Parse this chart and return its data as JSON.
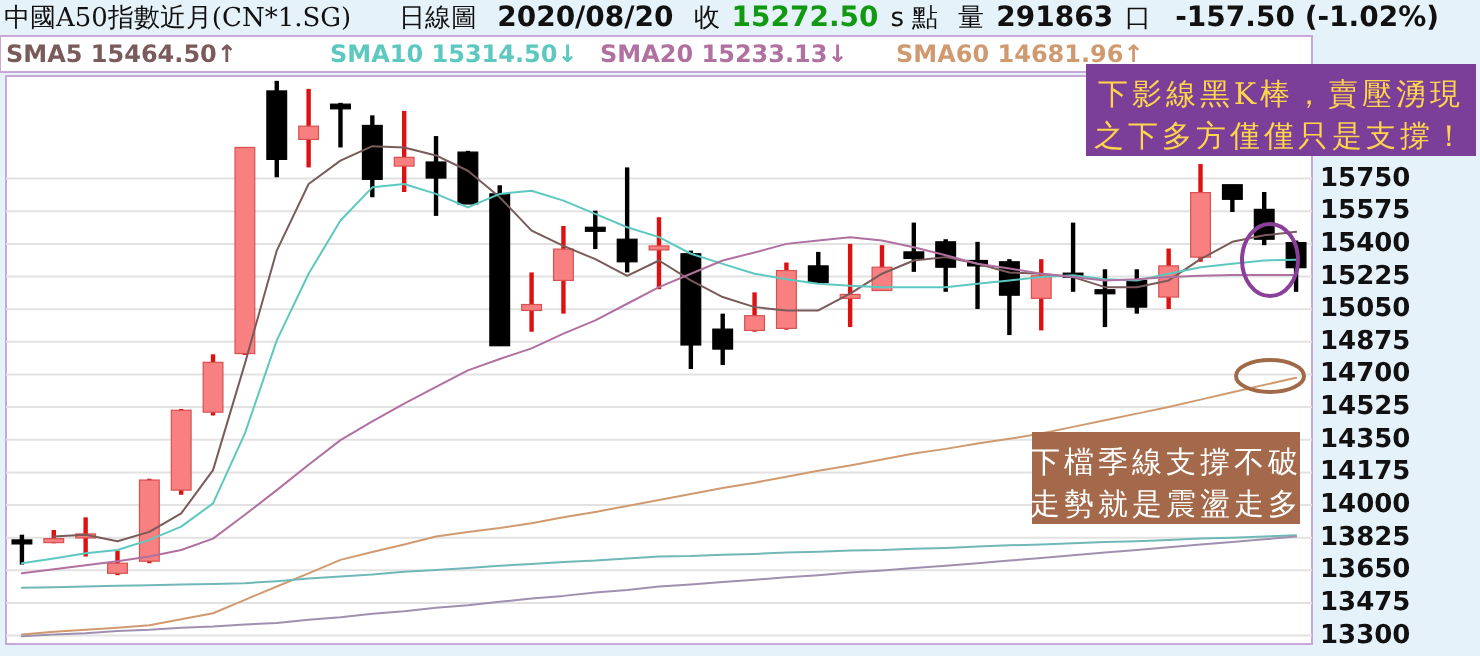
{
  "chart_data": {
    "type": "candlestick",
    "title": "中國A50指數近月(CN*1.SG)",
    "subtitle": "日線圖",
    "annotations": [
      "2020/08/20",
      "收",
      "15272.50",
      "s 點",
      "量",
      "291863",
      "口",
      "-157.50 (-1.02%)",
      "下影線黑K棒，賣壓湧現之下多方僅僅只是支撐！",
      "下檔季線支撐不破走勢就是震盪走多"
    ],
    "categories": [
      null,
      null,
      null,
      null,
      null,
      null,
      null,
      null,
      null,
      null,
      null,
      null,
      null,
      null,
      null,
      null,
      null,
      null,
      null,
      null,
      null,
      null,
      null,
      null,
      null,
      null,
      null,
      null,
      null,
      null,
      null,
      null,
      null,
      null,
      null,
      null,
      null,
      null,
      null,
      null,
      null
    ],
    "ohlc": [
      [
        13813,
        13841,
        13681,
        13806
      ],
      [
        13806,
        13866,
        13795,
        13820
      ],
      [
        13838,
        13934,
        13724,
        13845
      ],
      [
        13634,
        13756,
        13624,
        13688
      ],
      [
        13699,
        14141,
        13688,
        14134
      ],
      [
        14080,
        14515,
        14055,
        14508
      ],
      [
        14498,
        14808,
        14480,
        14765
      ],
      [
        14812,
        15917,
        14804,
        15917
      ],
      [
        16220,
        16274,
        15757,
        15853
      ],
      [
        15960,
        16231,
        15810,
        16031
      ],
      [
        16149,
        16156,
        15917,
        16124
      ],
      [
        16035,
        16089,
        15650,
        15746
      ],
      [
        15817,
        16113,
        15678,
        15864
      ],
      [
        15839,
        15978,
        15550,
        15753
      ],
      [
        15892,
        15899,
        15614,
        15614
      ],
      [
        15668,
        15714,
        14854,
        14854
      ],
      [
        15043,
        15247,
        14929,
        15075
      ],
      [
        15204,
        15496,
        15026,
        15372
      ],
      [
        15489,
        15578,
        15372,
        15471
      ],
      [
        15425,
        15810,
        15247,
        15304
      ],
      [
        15375,
        15543,
        15157,
        15389
      ],
      [
        15347,
        15364,
        14729,
        14858
      ],
      [
        14943,
        15026,
        14751,
        14836
      ],
      [
        14936,
        15140,
        14929,
        15015
      ],
      [
        14947,
        15300,
        14940,
        15257
      ],
      [
        15282,
        15357,
        15193,
        15193
      ],
      [
        15122,
        15400,
        14954,
        15129
      ],
      [
        15150,
        15393,
        15150,
        15275
      ],
      [
        15357,
        15514,
        15250,
        15322
      ],
      [
        15411,
        15425,
        15143,
        15275
      ],
      [
        15311,
        15411,
        15051,
        15282
      ],
      [
        15304,
        15318,
        14911,
        15125
      ],
      [
        15108,
        15318,
        14936,
        15229
      ],
      [
        15243,
        15514,
        15143,
        15236
      ],
      [
        15154,
        15264,
        14954,
        15147
      ],
      [
        15204,
        15264,
        15026,
        15061
      ],
      [
        15115,
        15375,
        15051,
        15282
      ],
      [
        15329,
        15828,
        15304,
        15675
      ],
      [
        15717,
        15717,
        15571,
        15639
      ],
      [
        15585,
        15678,
        15393,
        15425
      ],
      [
        15407,
        15418,
        15143,
        15272.5
      ]
    ],
    "series": [
      {
        "name": "SMA5 15464.50↑",
        "type": "line",
        "color": "#7a5a5a",
        "values": [
          null,
          13831,
          13841,
          13806,
          13856,
          13955,
          14187,
          14758,
          15364,
          15721,
          15846,
          15924,
          15917,
          15874,
          15792,
          15650,
          15471,
          15389,
          15318,
          15229,
          15311,
          15204,
          15115,
          15061,
          15043,
          15043,
          15133,
          15240,
          15311,
          15329,
          15293,
          15247,
          15240,
          15222,
          15168,
          15168,
          15204,
          15318,
          15411,
          15446,
          15464.5
        ]
      },
      {
        "name": "SMA10 15314.50↓",
        "type": "line",
        "color": "#5cc8c0",
        "values": [
          13688,
          13713,
          13741,
          13759,
          13813,
          13884,
          14009,
          14384,
          14883,
          15240,
          15525,
          15703,
          15721,
          15668,
          15596,
          15668,
          15685,
          15632,
          15561,
          15489,
          15436,
          15347,
          15293,
          15240,
          15211,
          15186,
          15175,
          15168,
          15168,
          15168,
          15186,
          15204,
          15222,
          15232,
          15211,
          15204,
          15240,
          15275,
          15293,
          15311,
          15314.5
        ]
      },
      {
        "name": "SMA20 15233.13↓",
        "type": "line",
        "color": "#b070a0",
        "values": [
          13634,
          13656,
          13677,
          13699,
          13724,
          13759,
          13820,
          13948,
          14080,
          14216,
          14348,
          14448,
          14544,
          14633,
          14722,
          14783,
          14840,
          14919,
          14990,
          15079,
          15168,
          15240,
          15311,
          15354,
          15400,
          15418,
          15436,
          15418,
          15382,
          15339,
          15293,
          15268,
          15240,
          15222,
          15204,
          15211,
          15222,
          15229,
          15233,
          15233,
          15233.13
        ]
      },
      {
        "name": "SMA60 14681.96↑",
        "type": "line",
        "color": "#d09a70",
        "values": [
          13306,
          13321,
          13331,
          13342,
          13356,
          13388,
          13420,
          13492,
          13563,
          13634,
          13706,
          13748,
          13788,
          13831,
          13856,
          13877,
          13902,
          13934,
          13963,
          13995,
          14027,
          14059,
          14091,
          14120,
          14152,
          14184,
          14212,
          14244,
          14276,
          14301,
          14330,
          14355,
          14383,
          14419,
          14455,
          14490,
          14526,
          14565,
          14605,
          14644,
          14681.96
        ]
      },
      {
        "type": "line",
        "color": "#70b8b8",
        "values": [
          13556,
          13559,
          13563,
          13567,
          13570,
          13574,
          13577,
          13581,
          13592,
          13606,
          13617,
          13627,
          13642,
          13652,
          13663,
          13674,
          13684,
          13695,
          13702,
          13713,
          13724,
          13727,
          13734,
          13738,
          13745,
          13749,
          13756,
          13759,
          13766,
          13770,
          13777,
          13784,
          13788,
          13795,
          13802,
          13806,
          13813,
          13820,
          13824,
          13831,
          13838
        ]
      },
      {
        "type": "line",
        "color": "#a090b0",
        "values": [
          13296,
          13306,
          13313,
          13324,
          13331,
          13342,
          13349,
          13360,
          13367,
          13385,
          13399,
          13417,
          13431,
          13449,
          13463,
          13481,
          13499,
          13513,
          13531,
          13545,
          13563,
          13574,
          13588,
          13599,
          13613,
          13624,
          13638,
          13649,
          13663,
          13674,
          13688,
          13702,
          13716,
          13731,
          13745,
          13759,
          13774,
          13788,
          13802,
          13816,
          13831
        ]
      }
    ],
    "ylim": [
      13255,
      16300
    ],
    "yticks": [
      13300,
      13475,
      13650,
      13825,
      14000,
      14175,
      14350,
      14525,
      14700,
      14875,
      15050,
      15225,
      15400,
      15575,
      15750
    ],
    "grid": "y",
    "legend": "top",
    "marker": "none",
    "line_style": "solid",
    "tick_labels": "y"
  }
}
